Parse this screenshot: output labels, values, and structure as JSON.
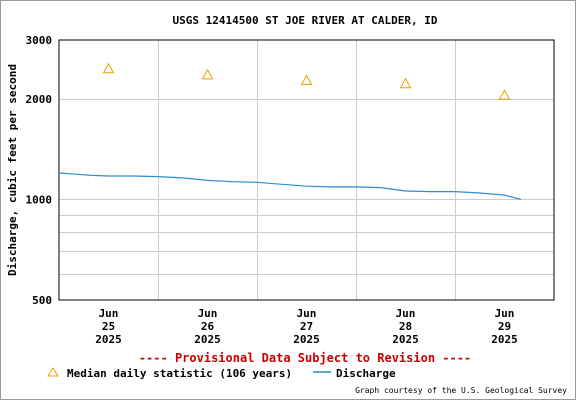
{
  "chart_data": {
    "type": "line",
    "title": "USGS 12414500 ST JOE RIVER AT CALDER, ID",
    "ylabel": "Discharge, cubic feet per second",
    "xlabel": "",
    "y_scale": "log",
    "ylim": [
      500,
      3000
    ],
    "y_ticks": [
      {
        "value": 500,
        "label": "500"
      },
      {
        "value": 1000,
        "label": "1000"
      },
      {
        "value": 2000,
        "label": "2000"
      },
      {
        "value": 3000,
        "label": "3000"
      }
    ],
    "y_minor_gridlines": [
      600,
      700,
      800,
      900
    ],
    "xlim": [
      "2025-06-24 12:00",
      "2025-06-29 12:00"
    ],
    "x_ticks": [
      {
        "value": "2025-06-25",
        "line1": "Jun",
        "line2": "25",
        "line3": "2025"
      },
      {
        "value": "2025-06-26",
        "line1": "Jun",
        "line2": "26",
        "line3": "2025"
      },
      {
        "value": "2025-06-27",
        "line1": "Jun",
        "line2": "27",
        "line3": "2025"
      },
      {
        "value": "2025-06-28",
        "line1": "Jun",
        "line2": "28",
        "line3": "2025"
      },
      {
        "value": "2025-06-29",
        "line1": "Jun",
        "line2": "29",
        "line3": "2025"
      }
    ],
    "x_gridlines": [
      "2025-06-25 12:00",
      "2025-06-26 12:00",
      "2025-06-27 12:00",
      "2025-06-28 12:00"
    ],
    "grid": true,
    "series": [
      {
        "name": "Discharge",
        "color": "#2a8fd0",
        "points": [
          [
            "2025-06-24 12:00",
            1200
          ],
          [
            "2025-06-24 16:00",
            1190
          ],
          [
            "2025-06-24 20:00",
            1180
          ],
          [
            "2025-06-25 00:00",
            1175
          ],
          [
            "2025-06-25 06:00",
            1175
          ],
          [
            "2025-06-25 12:00",
            1170
          ],
          [
            "2025-06-25 18:00",
            1160
          ],
          [
            "2025-06-26 00:00",
            1140
          ],
          [
            "2025-06-26 06:00",
            1130
          ],
          [
            "2025-06-26 12:00",
            1125
          ],
          [
            "2025-06-26 18:00",
            1110
          ],
          [
            "2025-06-27 00:00",
            1095
          ],
          [
            "2025-06-27 06:00",
            1090
          ],
          [
            "2025-06-27 12:00",
            1090
          ],
          [
            "2025-06-27 18:00",
            1085
          ],
          [
            "2025-06-28 00:00",
            1060
          ],
          [
            "2025-06-28 06:00",
            1055
          ],
          [
            "2025-06-28 12:00",
            1055
          ],
          [
            "2025-06-28 18:00",
            1045
          ],
          [
            "2025-06-29 00:00",
            1030
          ],
          [
            "2025-06-29 04:00",
            1000
          ]
        ]
      },
      {
        "name": "Median daily statistic (106 years)",
        "color": "#e8a000",
        "marker": "triangle-open",
        "points": [
          [
            "2025-06-25 00:00",
            2460
          ],
          [
            "2025-06-26 00:00",
            2360
          ],
          [
            "2025-06-27 00:00",
            2270
          ],
          [
            "2025-06-28 00:00",
            2220
          ],
          [
            "2025-06-29 00:00",
            2050
          ]
        ]
      }
    ],
    "legend": {
      "placement": "bottom-left",
      "entries": [
        {
          "label": "Median daily statistic (106 years)",
          "symbol": "triangle-open",
          "color": "#e8a000"
        },
        {
          "label": "Discharge",
          "symbol": "line",
          "color": "#2a8fd0"
        }
      ]
    },
    "provisional_note": "---- Provisional Data Subject to Revision ----",
    "provisional_color": "#cc0000",
    "credit": "Graph courtesy of the U.S. Geological Survey"
  }
}
